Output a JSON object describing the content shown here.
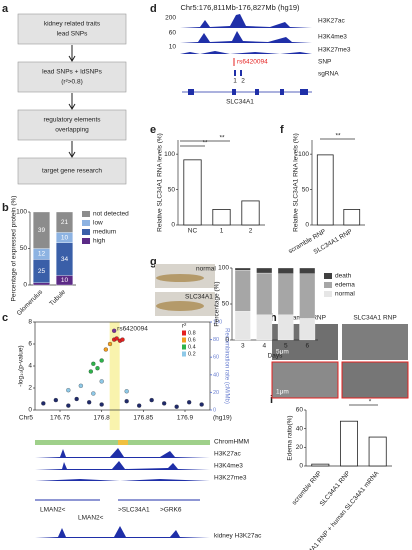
{
  "panel_labels": [
    "a",
    "b",
    "c",
    "d",
    "e",
    "f",
    "g",
    "h",
    "i"
  ],
  "flowchart": {
    "steps": [
      [
        "kidney related traits",
        "lead SNPs"
      ],
      [
        "lead SNPs + ldSNPs",
        "(r²>0.8)"
      ],
      [
        "regulatory elements",
        "overlapping"
      ],
      [
        "target gene research"
      ]
    ]
  },
  "browser_d": {
    "title": "Chr5:176,811Mb-176,827Mb (hg19)",
    "tracks": [
      "H3K27ac",
      "H3K4me3",
      "H3K27me3",
      "SNP",
      "sgRNA"
    ],
    "scales": [
      "200",
      "60",
      "10"
    ],
    "snp": "rs6420094",
    "sgrnas": [
      "1",
      "2"
    ],
    "gene": "SLC34A1"
  },
  "tracks_c": {
    "tracks": [
      "ChromHMM",
      "H3K27ac",
      "H3K4me3",
      "H3K27me3"
    ],
    "genes": [
      "LMAN2<",
      "LMAN2<",
      ">SLC34A1",
      ">GRK6"
    ],
    "bottom_track": "kidney H3K27ac"
  },
  "images_g": {
    "labels": [
      "normal",
      "SLC34A1"
    ]
  },
  "images_h": {
    "labels": [
      "scramble RNP",
      "SLC34A1 RNP"
    ],
    "scale_bars": [
      "5μm",
      "1μm"
    ]
  },
  "chart_data": [
    {
      "type": "stacked_bar",
      "y_label": "Percentage of expressed protein (%)",
      "categories": [
        "Glomerulus",
        "Tubule"
      ],
      "series": [
        {
          "name": "high",
          "color": "#5b2a86",
          "values": [
            3,
            13
          ],
          "count_labels": [
            null,
            "10"
          ]
        },
        {
          "name": "medium",
          "color": "#3a5fa8",
          "values": [
            32,
            45
          ],
          "count_labels": [
            "25",
            "34"
          ]
        },
        {
          "name": "low",
          "color": "#8db3e2",
          "values": [
            15,
            14
          ],
          "count_labels": [
            "12",
            "10"
          ]
        },
        {
          "name": "not detected",
          "color": "#8c8c8c",
          "values": [
            50,
            28
          ],
          "count_labels": [
            "39",
            "21"
          ]
        }
      ],
      "ylim": [
        0,
        100
      ],
      "yticks": [
        0,
        50,
        100
      ],
      "legend": "right"
    },
    {
      "type": "scatter",
      "x_label": "Chr5",
      "x_unit": "(hg19)",
      "y_label": "-log₁₀(p-value)",
      "y2_label": "Recombination rate (cM/Mb)",
      "annotation": "rs6420094",
      "legend_title": "r²",
      "series": [
        {
          "color": "#1f2a6b",
          "x": [
            176.73,
            176.745,
            176.76,
            176.77,
            176.785,
            176.8,
            176.83,
            176.845,
            176.86,
            176.875,
            176.89,
            176.905,
            176.92
          ],
          "values": [
            0.6,
            0.9,
            0.4,
            1.0,
            0.7,
            0.5,
            0.8,
            0.4,
            0.9,
            0.6,
            0.3,
            0.7,
            0.5
          ]
        },
        {
          "name": "0.2",
          "color": "#8ec9e8",
          "x": [
            176.76,
            176.775,
            176.79,
            176.8,
            176.83
          ],
          "values": [
            1.8,
            2.2,
            1.5,
            2.6,
            1.7
          ]
        },
        {
          "name": "0.4",
          "color": "#2db34a",
          "x": [
            176.787,
            176.79,
            176.795,
            176.8
          ],
          "values": [
            3.5,
            4.2,
            3.8,
            4.5
          ]
        },
        {
          "name": "0.6",
          "color": "#f29d1f",
          "x": [
            176.805,
            176.81
          ],
          "values": [
            5.5,
            6.0
          ]
        },
        {
          "name": "0.8",
          "color": "#e4201f",
          "x": [
            176.815,
            176.818,
            176.822,
            176.825
          ],
          "values": [
            6.4,
            6.5,
            6.3,
            6.4
          ]
        },
        {
          "color": "#7b3294",
          "x": [
            176.815
          ],
          "values": [
            7.2
          ]
        }
      ],
      "xlim": [
        176.72,
        176.93
      ],
      "xticks": [
        176.75,
        176.8,
        176.85,
        176.9
      ],
      "ylim": [
        0,
        8
      ],
      "yticks": [
        0,
        2,
        4,
        6,
        8
      ],
      "y2lim": [
        0,
        100
      ],
      "y2ticks": [
        0,
        20,
        40,
        60,
        80,
        100
      ]
    },
    {
      "type": "bar",
      "y_label": "Relative SLC34A1 RNA levels (%)",
      "categories": [
        "NC",
        "1",
        "2"
      ],
      "values": [
        92,
        22,
        34
      ],
      "color": "#ffffff",
      "ylim": [
        0,
        120
      ],
      "yticks": [
        0,
        50,
        100
      ],
      "annotations": [
        "**",
        "**"
      ]
    },
    {
      "type": "bar",
      "y_label": "Relative SLC34A1 RNA levels (%)",
      "categories": [
        "scramble RNP",
        "SLC34A1 RNP"
      ],
      "values": [
        99,
        22
      ],
      "color": "#ffffff",
      "ylim": [
        0,
        120
      ],
      "yticks": [
        0,
        50,
        100
      ],
      "annotations": [
        "**"
      ]
    },
    {
      "type": "stacked_bar",
      "y_label": "Percentage (%)",
      "x_label": "Days",
      "categories": [
        "3",
        "4",
        "5",
        "6"
      ],
      "series": [
        {
          "name": "normal",
          "color": "#e6e6e6",
          "values": [
            40,
            35,
            35,
            30
          ]
        },
        {
          "name": "edema",
          "color": "#a6a6a6",
          "values": [
            57,
            58,
            57,
            62
          ]
        },
        {
          "name": "death",
          "color": "#404040",
          "values": [
            3,
            7,
            8,
            8
          ]
        }
      ],
      "ylim": [
        0,
        100
      ],
      "yticks": [
        0,
        50,
        100
      ],
      "legend": "right"
    },
    {
      "type": "bar",
      "y_label": "Edema ratio(%)",
      "categories": [
        "scramble RNP",
        "SLC34A1 RNP",
        "SLC34A1 RNP + human SLC34A1 mRNA"
      ],
      "values": [
        2,
        48,
        31
      ],
      "color": "#ffffff",
      "ylim": [
        0,
        60
      ],
      "yticks": [
        0,
        20,
        40,
        60
      ],
      "annotations": [
        "*"
      ]
    }
  ]
}
